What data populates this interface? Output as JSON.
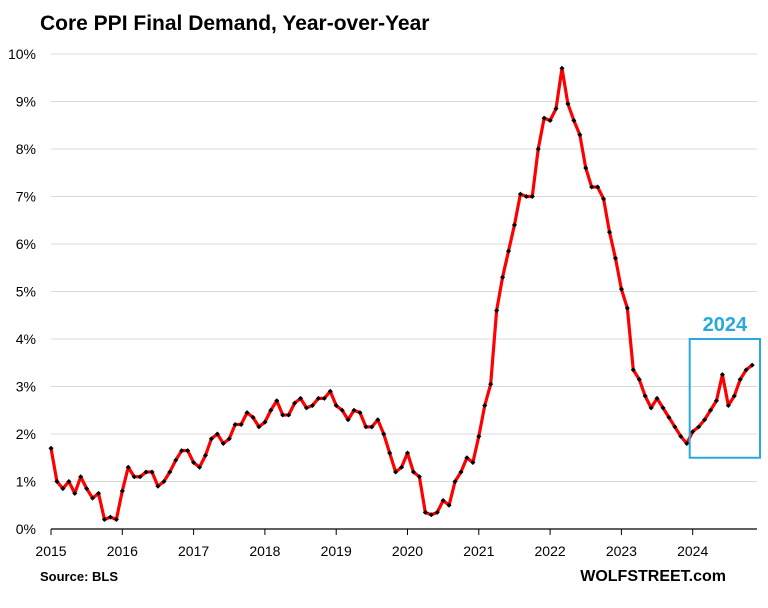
{
  "chart_data": {
    "type": "line",
    "title": "Core PPI Final Demand,  Year-over-Year",
    "source": "Source: BLS",
    "brand": "WOLFSTREET.com",
    "xlabel": "",
    "ylabel": "",
    "y_ticks": [
      "0%",
      "1%",
      "2%",
      "3%",
      "4%",
      "5%",
      "6%",
      "7%",
      "8%",
      "9%",
      "10%"
    ],
    "x_ticks": [
      "2015",
      "2016",
      "2017",
      "2018",
      "2019",
      "2020",
      "2021",
      "2022",
      "2023",
      "2024"
    ],
    "ylim": [
      0,
      10
    ],
    "xlim": [
      2015,
      2024.917
    ],
    "grid": "horizontal",
    "legend": "none",
    "colors": {
      "line": "#ff0000",
      "marker": "#000000",
      "highlight": "#29a8e0",
      "grid": "#d9d9d9"
    },
    "highlight": {
      "label": "2024",
      "x_range": [
        2024,
        2024.917
      ],
      "y_range": [
        1.5,
        4.0
      ]
    },
    "series": [
      {
        "start": "2015-01",
        "frequency": "monthly",
        "values": [
          1.7,
          1.0,
          0.85,
          1.0,
          0.75,
          1.1,
          0.85,
          0.65,
          0.75,
          0.2,
          0.25,
          0.2,
          0.8,
          1.3,
          1.1,
          1.1,
          1.2,
          1.2,
          0.9,
          1.0,
          1.2,
          1.45,
          1.65,
          1.65,
          1.4,
          1.3,
          1.55,
          1.9,
          2.0,
          1.8,
          1.9,
          2.2,
          2.2,
          2.45,
          2.35,
          2.15,
          2.25,
          2.5,
          2.7,
          2.4,
          2.4,
          2.65,
          2.75,
          2.55,
          2.6,
          2.75,
          2.75,
          2.9,
          2.6,
          2.5,
          2.3,
          2.5,
          2.45,
          2.15,
          2.15,
          2.3,
          2.0,
          1.6,
          1.2,
          1.3,
          1.6,
          1.2,
          1.1,
          0.35,
          0.3,
          0.35,
          0.6,
          0.5,
          1.0,
          1.2,
          1.5,
          1.4,
          1.95,
          2.6,
          3.05,
          4.6,
          5.3,
          5.85,
          6.4,
          7.05,
          7.0,
          7.0,
          8.0,
          8.65,
          8.6,
          8.85,
          9.7,
          8.95,
          8.6,
          8.3,
          7.6,
          7.2,
          7.2,
          6.95,
          6.25,
          5.7,
          5.05,
          4.65,
          3.35,
          3.15,
          2.8,
          2.55,
          2.75,
          2.55,
          2.35,
          2.15,
          1.95,
          1.8,
          2.05,
          2.15,
          2.3,
          2.5,
          2.7,
          3.25,
          2.6,
          2.8,
          3.15,
          3.35,
          3.45
        ]
      }
    ]
  }
}
